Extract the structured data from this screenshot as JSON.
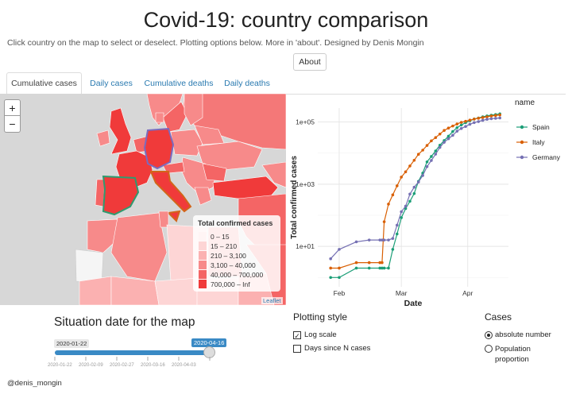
{
  "header": {
    "title": "Covid-19: country comparison",
    "subtitle": "Click country on the map to select or deselect. Plotting options below. More in 'about'. Designed by Denis Mongin",
    "about_label": "About"
  },
  "tabs": [
    {
      "label": "Cumulative cases",
      "active": true
    },
    {
      "label": "Daily cases",
      "active": false
    },
    {
      "label": "Cumulative deaths",
      "active": false
    },
    {
      "label": "Daily deaths",
      "active": false
    }
  ],
  "map": {
    "zoom_in": "+",
    "zoom_out": "−",
    "legend_title": "Total confirmed cases",
    "legend_items": [
      {
        "label": "0 – 15",
        "color": "#fff5f5"
      },
      {
        "label": "15 – 210",
        "color": "#fdd5d5"
      },
      {
        "label": "210 – 3,100",
        "color": "#fbb1b1"
      },
      {
        "label": "3,100 – 40,000",
        "color": "#f78a8a"
      },
      {
        "label": "40,000 – 700,000",
        "color": "#f46565"
      },
      {
        "label": "700,000 – Inf",
        "color": "#f03a3a"
      }
    ],
    "attribution": "Leaflet",
    "selected_outline_colors": {
      "Spain": "#2e9b6f",
      "Italy": "#d2651a",
      "Germany": "#7a6bbf"
    }
  },
  "chart_data": {
    "type": "line",
    "xlabel": "Date",
    "ylabel": "Total confirmed cases",
    "x_ticks": [
      "Feb",
      "Mar",
      "Apr"
    ],
    "y_ticks": [
      "1e+01",
      "1e+03",
      "1e+05"
    ],
    "y_scale": "log10",
    "legend_title": "name",
    "legend_position": "right",
    "grid": true,
    "x": [
      "2020-01-28",
      "2020-02-01",
      "2020-02-09",
      "2020-02-15",
      "2020-02-20",
      "2020-02-21",
      "2020-02-22",
      "2020-02-24",
      "2020-02-26",
      "2020-02-28",
      "2020-03-01",
      "2020-03-03",
      "2020-03-05",
      "2020-03-07",
      "2020-03-09",
      "2020-03-11",
      "2020-03-13",
      "2020-03-15",
      "2020-03-17",
      "2020-03-19",
      "2020-03-21",
      "2020-03-23",
      "2020-03-25",
      "2020-03-27",
      "2020-03-29",
      "2020-03-31",
      "2020-04-02",
      "2020-04-04",
      "2020-04-06",
      "2020-04-08",
      "2020-04-10",
      "2020-04-12",
      "2020-04-14",
      "2020-04-16"
    ],
    "series": [
      {
        "name": "Spain",
        "color": "#1b9e77",
        "values": [
          1,
          1,
          2,
          2,
          2,
          2,
          2,
          2,
          8,
          25,
          84,
          165,
          282,
          500,
          1231,
          2277,
          5232,
          7798,
          11748,
          17963,
          25374,
          35136,
          49515,
          65719,
          80110,
          95923,
          110238,
          124736,
          135032,
          146690,
          157022,
          166019,
          174060,
          182816
        ]
      },
      {
        "name": "Italy",
        "color": "#d95f02",
        "values": [
          2,
          2,
          3,
          3,
          3,
          3,
          62,
          229,
          453,
          888,
          1694,
          2502,
          3858,
          5883,
          9172,
          12462,
          17660,
          24747,
          31506,
          41035,
          53578,
          63927,
          74386,
          86498,
          97689,
          105792,
          115242,
          124632,
          132547,
          139422,
          147577,
          156363,
          162488,
          168941
        ]
      },
      {
        "name": "Germany",
        "color": "#7570b3",
        "values": [
          4,
          8,
          14,
          16,
          16,
          16,
          16,
          16,
          18,
          48,
          130,
          196,
          482,
          800,
          1176,
          1908,
          3675,
          5813,
          9257,
          15320,
          22213,
          29056,
          37323,
          50871,
          62095,
          71808,
          84794,
          96092,
          103374,
          113296,
          122171,
          127854,
          131359,
          135199
        ]
      }
    ]
  },
  "situation": {
    "title": "Situation date for the map",
    "min_label": "2020-01-22",
    "value_label": "2020-04-16",
    "value_fraction": 1.0,
    "ticks": [
      "2020-01-22",
      "2020-02-09",
      "2020-02-27",
      "2020-03-16",
      "2020-04-03"
    ],
    "minor_ticks": [
      "2020-02-09",
      "2020-02-27",
      "2020-03-16",
      "2020-04-03"
    ]
  },
  "plotting_style": {
    "title": "Plotting style",
    "log_scale_label": "Log scale",
    "log_scale_checked": true,
    "days_since_label": "Days since N cases",
    "days_since_checked": false
  },
  "cases": {
    "title": "Cases",
    "absolute_label": "absolute number",
    "population_label_1": "Population",
    "population_label_2": "proportion",
    "selected": "absolute"
  },
  "footer": {
    "handle": "@denis_mongin"
  }
}
